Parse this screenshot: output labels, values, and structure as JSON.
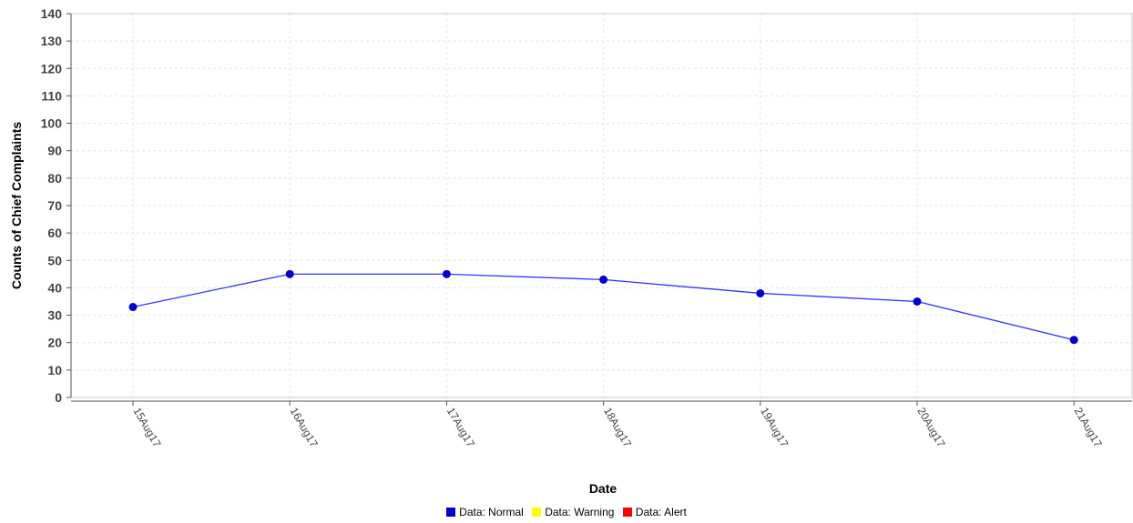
{
  "chart_data": {
    "type": "line",
    "xlabel": "Date",
    "ylabel": "Counts of Chief Complaints",
    "categories": [
      "15Aug17",
      "16Aug17",
      "17Aug17",
      "18Aug17",
      "19Aug17",
      "20Aug17",
      "21Aug17"
    ],
    "series": [
      {
        "name": "Data: Normal",
        "values": [
          33,
          45,
          45,
          43,
          38,
          35,
          21
        ]
      }
    ],
    "ylim": [
      0,
      140
    ],
    "yticks": [
      0,
      10,
      20,
      30,
      40,
      50,
      60,
      70,
      80,
      90,
      100,
      110,
      120,
      130,
      140
    ],
    "grid": true,
    "legend": {
      "position": "bottom",
      "entries": [
        {
          "label": "Data: Normal",
          "color": "#0000cc"
        },
        {
          "label": "Data: Warning",
          "color": "#ffff00"
        },
        {
          "label": "Data: Alert",
          "color": "#ff0000"
        }
      ]
    },
    "colors": {
      "line": "#3333ff",
      "marker": "#0000cc",
      "grid": "#e4e4e4"
    }
  }
}
